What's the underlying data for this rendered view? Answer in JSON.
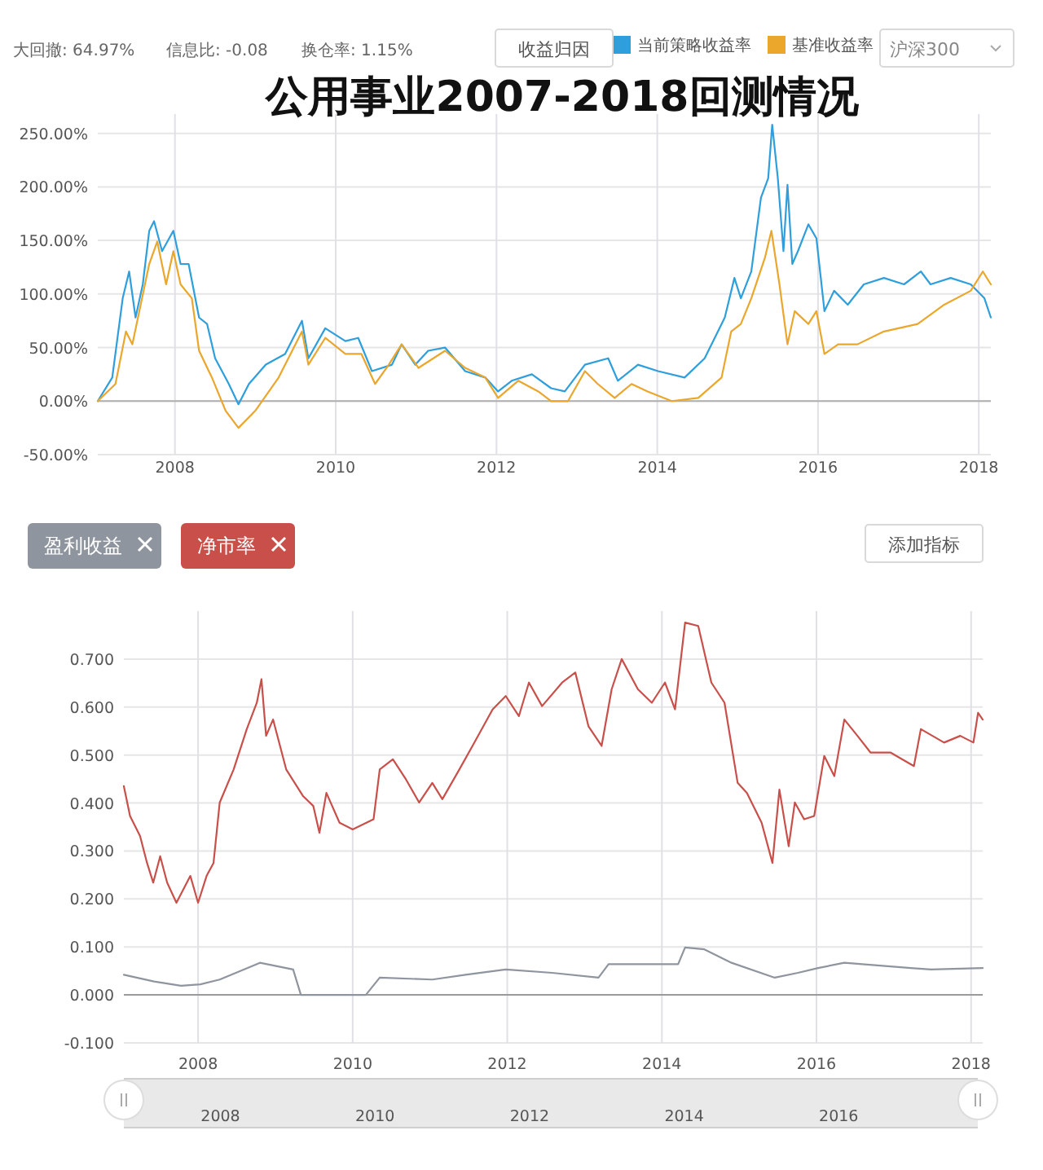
{
  "chart_data": [
    {
      "type": "line",
      "title": "公用事业2007-2018回测情况",
      "annotations": [
        "大回撤: 64.97%",
        "信息比: -0.08",
        "换仓率: 1.15%",
        "收益归因",
        "沪深300"
      ],
      "xlim": [
        2007.04,
        2018.15
      ],
      "xticks": [
        2008,
        2010,
        2012,
        2014,
        2016,
        2018
      ],
      "ylim": [
        -50,
        268
      ],
      "yticks": [
        {
          "value": -50,
          "label": "-50.00%"
        },
        {
          "value": 0,
          "label": "0.00%"
        },
        {
          "value": 50,
          "label": "50.00%"
        },
        {
          "value": 100,
          "label": "100.00%"
        },
        {
          "value": 150,
          "label": "150.00%"
        },
        {
          "value": 200,
          "label": "200.00%"
        },
        {
          "value": 250,
          "label": "250.00%"
        }
      ],
      "grid": true,
      "legend": "top right",
      "ref_lines": [
        {
          "axis": "y",
          "value": 0,
          "color": "#b0b0b0"
        }
      ],
      "series": [
        {
          "name": "当前策略收益率",
          "color": "#2e9fdc",
          "x": [
            2007.04,
            2007.22,
            2007.35,
            2007.43,
            2007.51,
            2007.6,
            2007.68,
            2007.74,
            2007.84,
            2007.98,
            2008.07,
            2008.17,
            2008.3,
            2008.4,
            2008.5,
            2008.67,
            2008.79,
            2008.92,
            2009.13,
            2009.37,
            2009.58,
            2009.66,
            2009.87,
            2010.12,
            2010.28,
            2010.45,
            2010.7,
            2010.82,
            2010.99,
            2011.15,
            2011.36,
            2011.61,
            2011.86,
            2012.02,
            2012.19,
            2012.44,
            2012.68,
            2012.85,
            2013.1,
            2013.39,
            2013.51,
            2013.76,
            2014.01,
            2014.34,
            2014.59,
            2014.84,
            2014.96,
            2015.04,
            2015.17,
            2015.29,
            2015.38,
            2015.43,
            2015.5,
            2015.57,
            2015.62,
            2015.68,
            2015.75,
            2015.88,
            2015.98,
            2016.08,
            2016.2,
            2016.37,
            2016.57,
            2016.82,
            2017.07,
            2017.28,
            2017.4,
            2017.65,
            2017.9,
            2018.07,
            2018.15
          ],
          "values": [
            0,
            22,
            96,
            121,
            78,
            109,
            159,
            168,
            140,
            159,
            128,
            128,
            78,
            72,
            40,
            16,
            -3,
            16,
            34,
            44,
            75,
            40,
            68,
            56,
            59,
            28,
            34,
            53,
            34,
            47,
            50,
            28,
            22,
            9,
            19,
            25,
            12,
            9,
            34,
            40,
            19,
            34,
            28,
            22,
            40,
            78,
            115,
            96,
            121,
            190,
            208,
            258,
            208,
            140,
            202,
            128,
            140,
            165,
            152,
            84,
            103,
            90,
            109,
            115,
            109,
            121,
            109,
            115,
            109,
            96,
            78
          ]
        },
        {
          "name": "基准收益率",
          "color": "#eba62c",
          "x": [
            2007.04,
            2007.26,
            2007.39,
            2007.47,
            2007.68,
            2007.78,
            2007.89,
            2007.98,
            2008.07,
            2008.21,
            2008.3,
            2008.46,
            2008.63,
            2008.79,
            2009.0,
            2009.29,
            2009.58,
            2009.66,
            2009.87,
            2010.12,
            2010.32,
            2010.49,
            2010.66,
            2010.82,
            2011.03,
            2011.36,
            2011.61,
            2011.86,
            2012.02,
            2012.27,
            2012.52,
            2012.68,
            2012.89,
            2013.1,
            2013.26,
            2013.47,
            2013.68,
            2013.88,
            2014.18,
            2014.51,
            2014.8,
            2014.92,
            2015.04,
            2015.17,
            2015.34,
            2015.42,
            2015.52,
            2015.62,
            2015.71,
            2015.88,
            2015.98,
            2016.08,
            2016.25,
            2016.49,
            2016.82,
            2017.24,
            2017.57,
            2017.9,
            2018.05,
            2018.15
          ],
          "values": [
            0,
            16,
            65,
            53,
            128,
            149,
            109,
            140,
            109,
            96,
            47,
            22,
            -9,
            -25,
            -9,
            22,
            65,
            34,
            59,
            44,
            44,
            16,
            34,
            53,
            31,
            47,
            31,
            22,
            3,
            19,
            9,
            0,
            0,
            28,
            16,
            3,
            16,
            9,
            0,
            3,
            22,
            65,
            72,
            96,
            134,
            159,
            109,
            53,
            84,
            72,
            84,
            44,
            53,
            53,
            65,
            72,
            90,
            103,
            121,
            109
          ]
        }
      ]
    },
    {
      "type": "line",
      "annotations": [
        "添加指标"
      ],
      "xlim": [
        2007.04,
        2018.15
      ],
      "xticks": [
        2008,
        2010,
        2012,
        2014,
        2016,
        2018
      ],
      "ylim": [
        -0.1,
        0.8
      ],
      "yticks": [
        {
          "value": -0.1,
          "label": "-0.100"
        },
        {
          "value": 0,
          "label": "0.000"
        },
        {
          "value": 0.1,
          "label": "0.100"
        },
        {
          "value": 0.2,
          "label": "0.200"
        },
        {
          "value": 0.3,
          "label": "0.300"
        },
        {
          "value": 0.4,
          "label": "0.400"
        },
        {
          "value": 0.5,
          "label": "0.500"
        },
        {
          "value": 0.6,
          "label": "0.600"
        },
        {
          "value": 0.7,
          "label": "0.700"
        }
      ],
      "x2lim": [
        2006.75,
        2017.8
      ],
      "x2ticks": [
        2008,
        2010,
        2012,
        2014,
        2016
      ],
      "grid": true,
      "legend": "top left",
      "ref_lines": [
        {
          "axis": "y",
          "value": 0,
          "color": "#9a9a9a"
        }
      ],
      "series": [
        {
          "name": "盈利收益",
          "color": "#8f959e",
          "x": [
            2007.04,
            2007.43,
            2007.78,
            2008.03,
            2008.28,
            2008.8,
            2009.23,
            2009.33,
            2010.17,
            2010.35,
            2011.03,
            2011.46,
            2011.98,
            2012.58,
            2013.18,
            2013.31,
            2014.21,
            2014.3,
            2014.55,
            2014.9,
            2015.46,
            2015.76,
            2016.02,
            2016.36,
            2017.22,
            2017.48,
            2018.15
          ],
          "values": [
            0.042,
            0.028,
            0.019,
            0.022,
            0.032,
            0.067,
            0.053,
            0,
            0,
            0.036,
            0.032,
            0.042,
            0.053,
            0.046,
            0.036,
            0.064,
            0.064,
            0.099,
            0.095,
            0.067,
            0.036,
            0.046,
            0.056,
            0.067,
            0.056,
            0.053,
            0.056
          ]
        },
        {
          "name": "净市率",
          "color": "#c9504a",
          "x": [
            2007.04,
            2007.12,
            2007.25,
            2007.34,
            2007.42,
            2007.51,
            2007.6,
            2007.72,
            2007.9,
            2008.0,
            2008.11,
            2008.2,
            2008.28,
            2008.46,
            2008.63,
            2008.76,
            2008.82,
            2008.88,
            2008.97,
            2009.14,
            2009.36,
            2009.49,
            2009.57,
            2009.66,
            2009.83,
            2010.0,
            2010.27,
            2010.35,
            2010.52,
            2010.69,
            2010.86,
            2011.03,
            2011.16,
            2011.38,
            2011.55,
            2011.81,
            2011.98,
            2012.15,
            2012.28,
            2012.45,
            2012.71,
            2012.88,
            2013.05,
            2013.22,
            2013.35,
            2013.48,
            2013.69,
            2013.87,
            2014.04,
            2014.17,
            2014.3,
            2014.47,
            2014.64,
            2014.81,
            2014.98,
            2015.1,
            2015.29,
            2015.43,
            2015.52,
            2015.64,
            2015.72,
            2015.84,
            2015.97,
            2016.1,
            2016.23,
            2016.36,
            2016.53,
            2016.7,
            2016.96,
            2017.26,
            2017.35,
            2017.65,
            2017.86,
            2018.03,
            2018.09,
            2018.15
          ],
          "values": [
            0.435,
            0.373,
            0.331,
            0.275,
            0.234,
            0.289,
            0.234,
            0.192,
            0.248,
            0.192,
            0.248,
            0.275,
            0.401,
            0.47,
            0.554,
            0.609,
            0.658,
            0.54,
            0.574,
            0.47,
            0.414,
            0.394,
            0.338,
            0.421,
            0.359,
            0.345,
            0.366,
            0.47,
            0.491,
            0.449,
            0.401,
            0.442,
            0.408,
            0.47,
            0.519,
            0.595,
            0.623,
            0.581,
            0.651,
            0.602,
            0.651,
            0.672,
            0.56,
            0.519,
            0.637,
            0.7,
            0.637,
            0.609,
            0.651,
            0.595,
            0.776,
            0.769,
            0.651,
            0.609,
            0.442,
            0.421,
            0.359,
            0.275,
            0.428,
            0.31,
            0.401,
            0.366,
            0.373,
            0.498,
            0.456,
            0.574,
            0.54,
            0.505,
            0.505,
            0.477,
            0.554,
            0.526,
            0.54,
            0.526,
            0.588,
            0.574
          ]
        }
      ]
    }
  ]
}
